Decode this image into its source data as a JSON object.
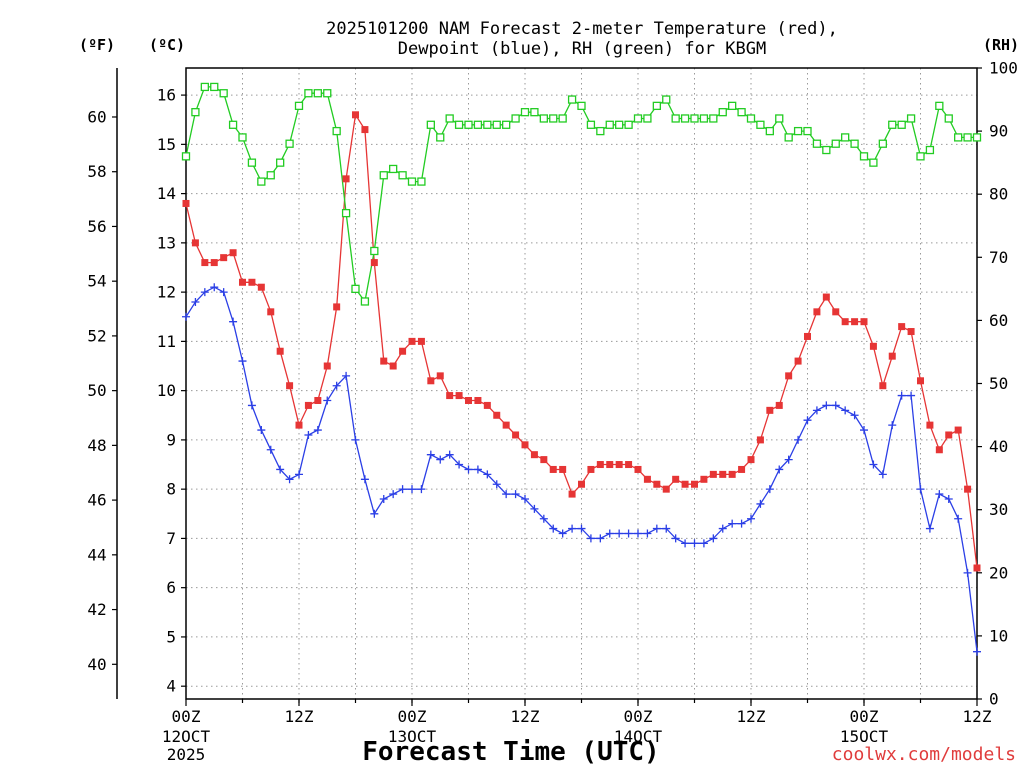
{
  "credit": {
    "text": "coolwx.com/models",
    "color": "#e03c3c"
  },
  "chart_data": {
    "type": "line",
    "title_lines": [
      "2025101200 NAM Forecast 2-meter Temperature (red),",
      "Dewpoint (blue), RH (green) for KBGM"
    ],
    "xlabel": "Forecast Time (UTC)",
    "grid": true,
    "x_grid_interval_hours": 6,
    "xlim": [
      "2025-10-12T00:00Z",
      "2025-10-15T12:00Z"
    ],
    "x_ticks": [
      {
        "time": "2025-10-12T00:00Z",
        "hour": "00Z",
        "day": "12OCT",
        "year": "2025"
      },
      {
        "time": "2025-10-12T12:00Z",
        "hour": "12Z"
      },
      {
        "time": "2025-10-13T00:00Z",
        "hour": "00Z",
        "day": "13OCT"
      },
      {
        "time": "2025-10-13T12:00Z",
        "hour": "12Z"
      },
      {
        "time": "2025-10-14T00:00Z",
        "hour": "00Z",
        "day": "14OCT"
      },
      {
        "time": "2025-10-14T12:00Z",
        "hour": "12Z"
      },
      {
        "time": "2025-10-15T00:00Z",
        "hour": "00Z",
        "day": "15OCT"
      },
      {
        "time": "2025-10-15T12:00Z",
        "hour": "12Z"
      }
    ],
    "axes": {
      "fahrenheit": {
        "label": "(ºF)",
        "ticks": [
          40,
          42,
          44,
          46,
          48,
          50,
          52,
          54,
          56,
          58,
          60
        ]
      },
      "celsius": {
        "label": "(ºC)",
        "lim": [
          3.74,
          16.55
        ],
        "ticks": [
          4,
          5,
          6,
          7,
          8,
          9,
          10,
          11,
          12,
          13,
          14,
          15,
          16
        ]
      },
      "rh": {
        "label": "(RH)",
        "lim": [
          0,
          100
        ],
        "ticks": [
          0,
          10,
          20,
          30,
          40,
          50,
          60,
          70,
          80,
          90,
          100
        ]
      }
    },
    "x": [
      "2025-10-12T00:00Z",
      "2025-10-12T01:00Z",
      "2025-10-12T02:00Z",
      "2025-10-12T03:00Z",
      "2025-10-12T04:00Z",
      "2025-10-12T05:00Z",
      "2025-10-12T06:00Z",
      "2025-10-12T07:00Z",
      "2025-10-12T08:00Z",
      "2025-10-12T09:00Z",
      "2025-10-12T10:00Z",
      "2025-10-12T11:00Z",
      "2025-10-12T12:00Z",
      "2025-10-12T13:00Z",
      "2025-10-12T14:00Z",
      "2025-10-12T15:00Z",
      "2025-10-12T16:00Z",
      "2025-10-12T17:00Z",
      "2025-10-12T18:00Z",
      "2025-10-12T19:00Z",
      "2025-10-12T20:00Z",
      "2025-10-12T21:00Z",
      "2025-10-12T22:00Z",
      "2025-10-12T23:00Z",
      "2025-10-13T00:00Z",
      "2025-10-13T01:00Z",
      "2025-10-13T02:00Z",
      "2025-10-13T03:00Z",
      "2025-10-13T04:00Z",
      "2025-10-13T05:00Z",
      "2025-10-13T06:00Z",
      "2025-10-13T07:00Z",
      "2025-10-13T08:00Z",
      "2025-10-13T09:00Z",
      "2025-10-13T10:00Z",
      "2025-10-13T11:00Z",
      "2025-10-13T12:00Z",
      "2025-10-13T13:00Z",
      "2025-10-13T14:00Z",
      "2025-10-13T15:00Z",
      "2025-10-13T16:00Z",
      "2025-10-13T17:00Z",
      "2025-10-13T18:00Z",
      "2025-10-13T19:00Z",
      "2025-10-13T20:00Z",
      "2025-10-13T21:00Z",
      "2025-10-13T22:00Z",
      "2025-10-13T23:00Z",
      "2025-10-14T00:00Z",
      "2025-10-14T01:00Z",
      "2025-10-14T02:00Z",
      "2025-10-14T03:00Z",
      "2025-10-14T04:00Z",
      "2025-10-14T05:00Z",
      "2025-10-14T06:00Z",
      "2025-10-14T07:00Z",
      "2025-10-14T08:00Z",
      "2025-10-14T09:00Z",
      "2025-10-14T10:00Z",
      "2025-10-14T11:00Z",
      "2025-10-14T12:00Z",
      "2025-10-14T13:00Z",
      "2025-10-14T14:00Z",
      "2025-10-14T15:00Z",
      "2025-10-14T16:00Z",
      "2025-10-14T17:00Z",
      "2025-10-14T18:00Z",
      "2025-10-14T19:00Z",
      "2025-10-14T20:00Z",
      "2025-10-14T21:00Z",
      "2025-10-14T22:00Z",
      "2025-10-14T23:00Z",
      "2025-10-15T00:00Z",
      "2025-10-15T01:00Z",
      "2025-10-15T02:00Z",
      "2025-10-15T03:00Z",
      "2025-10-15T04:00Z",
      "2025-10-15T05:00Z",
      "2025-10-15T06:00Z",
      "2025-10-15T07:00Z",
      "2025-10-15T08:00Z",
      "2025-10-15T09:00Z",
      "2025-10-15T10:00Z",
      "2025-10-15T11:00Z",
      "2025-10-15T12:00Z"
    ],
    "series": [
      {
        "name": "Temperature",
        "axis": "celsius",
        "color": "#e63535",
        "marker": "filled-square",
        "values": [
          13.8,
          13.0,
          12.6,
          12.6,
          12.7,
          12.8,
          12.2,
          12.2,
          12.1,
          11.6,
          10.8,
          10.1,
          9.3,
          9.7,
          9.8,
          10.5,
          11.7,
          14.3,
          15.6,
          15.3,
          12.6,
          10.6,
          10.5,
          10.8,
          11.0,
          11.0,
          10.2,
          10.3,
          9.9,
          9.9,
          9.8,
          9.8,
          9.7,
          9.5,
          9.3,
          9.1,
          8.9,
          8.7,
          8.6,
          8.4,
          8.4,
          7.9,
          8.1,
          8.4,
          8.5,
          8.5,
          8.5,
          8.5,
          8.4,
          8.2,
          8.1,
          8.0,
          8.2,
          8.1,
          8.1,
          8.2,
          8.3,
          8.3,
          8.3,
          8.4,
          8.6,
          9.0,
          9.6,
          9.7,
          10.3,
          10.6,
          11.1,
          11.6,
          11.9,
          11.6,
          11.4,
          11.4,
          11.4,
          10.9,
          10.1,
          10.7,
          11.3,
          11.2,
          10.2,
          9.3,
          8.8,
          9.1,
          9.2,
          8.0,
          6.4
        ]
      },
      {
        "name": "Dewpoint",
        "axis": "celsius",
        "color": "#2b3fe6",
        "marker": "plus",
        "values": [
          11.5,
          11.8,
          12.0,
          12.1,
          12.0,
          11.4,
          10.6,
          9.7,
          9.2,
          8.8,
          8.4,
          8.2,
          8.3,
          9.1,
          9.2,
          9.8,
          10.1,
          10.3,
          9.0,
          8.2,
          7.5,
          7.8,
          7.9,
          8.0,
          8.0,
          8.0,
          8.7,
          8.6,
          8.7,
          8.5,
          8.4,
          8.4,
          8.3,
          8.1,
          7.9,
          7.9,
          7.8,
          7.6,
          7.4,
          7.2,
          7.1,
          7.2,
          7.2,
          7.0,
          7.0,
          7.1,
          7.1,
          7.1,
          7.1,
          7.1,
          7.2,
          7.2,
          7.0,
          6.9,
          6.9,
          6.9,
          7.0,
          7.2,
          7.3,
          7.3,
          7.4,
          7.7,
          8.0,
          8.4,
          8.6,
          9.0,
          9.4,
          9.6,
          9.7,
          9.7,
          9.6,
          9.5,
          9.2,
          8.5,
          8.3,
          9.3,
          9.9,
          9.9,
          8.0,
          7.2,
          7.9,
          7.8,
          7.4,
          6.3,
          4.7
        ]
      },
      {
        "name": "RH",
        "axis": "rh",
        "color": "#22cc22",
        "marker": "open-square",
        "values": [
          86,
          93,
          97,
          97,
          96,
          91,
          89,
          85,
          82,
          83,
          85,
          88,
          94,
          96,
          96,
          96,
          90,
          77,
          65,
          63,
          71,
          83,
          84,
          83,
          82,
          82,
          91,
          89,
          92,
          91,
          91,
          91,
          91,
          91,
          91,
          92,
          93,
          93,
          92,
          92,
          92,
          95,
          94,
          91,
          90,
          91,
          91,
          91,
          92,
          92,
          94,
          95,
          92,
          92,
          92,
          92,
          92,
          93,
          94,
          93,
          92,
          91,
          90,
          92,
          89,
          90,
          90,
          88,
          87,
          88,
          89,
          88,
          86,
          85,
          88,
          91,
          91,
          92,
          86,
          87,
          94,
          92,
          89,
          89,
          89
        ]
      }
    ]
  }
}
